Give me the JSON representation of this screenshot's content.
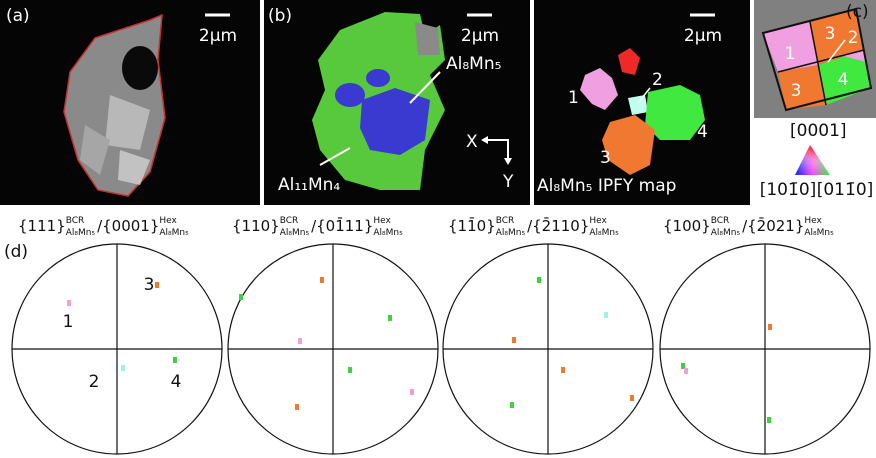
{
  "panel_a": {
    "label": "(a)",
    "scale": "2μm"
  },
  "panel_b": {
    "label": "(b)",
    "scale": "2μm",
    "phase1": "Al₈Mn₅",
    "phase2": "Al₁₁Mn₄",
    "axis_x": "X",
    "axis_y": "Y"
  },
  "panel_ipf": {
    "scale": "2μm",
    "grains": [
      "1",
      "2",
      "3",
      "4"
    ],
    "caption": "Al₈Mn₅ IPFY map"
  },
  "panel_c": {
    "label": "(c)",
    "grains": [
      "1",
      "3",
      "2",
      "3",
      "4"
    ],
    "key": [
      "[0001]",
      "[101̄0]",
      "[011̄0]"
    ]
  },
  "panel_d": {
    "label": "(d)",
    "titles": [
      {
        "plane1": "{111}",
        "sup1": "BCR",
        "sub1": "Al₈Mn₅",
        "plane2": "/{0001}",
        "sup2": "Hex",
        "sub2": "Al₈Mn₅"
      },
      {
        "plane1": "{110}",
        "sup1": "BCR",
        "sub1": "Al₈Mn₅",
        "plane2": "/{01̄11}",
        "sup2": "Hex",
        "sub2": "Al₈Mn₅"
      },
      {
        "plane1": "{11̄0}",
        "sup1": "BCR",
        "sub1": "Al₈Mn₅",
        "plane2": "/{2̄110}",
        "sup2": "Hex",
        "sub2": "Al₈Mn₅"
      },
      {
        "plane1": "{100}",
        "sup1": "BCR",
        "sub1": "Al₈Mn₅",
        "plane2": "/{2̄021}",
        "sup2": "Hex",
        "sub2": "Al₈Mn₅"
      }
    ],
    "grains": [
      "1",
      "2",
      "3",
      "4"
    ]
  }
}
